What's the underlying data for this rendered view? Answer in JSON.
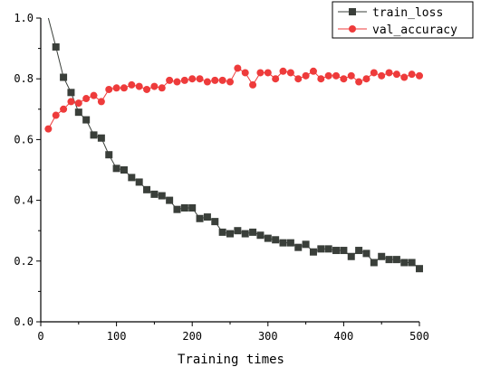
{
  "chart_data": {
    "type": "line",
    "title": "",
    "xlabel": "Training times",
    "ylabel": "",
    "xlim": [
      0,
      500
    ],
    "ylim": [
      0.0,
      1.0
    ],
    "x_ticks": [
      0,
      100,
      200,
      300,
      400,
      500
    ],
    "y_ticks": [
      0.0,
      0.2,
      0.4,
      0.6,
      0.8,
      1.0
    ],
    "x_tick_labels": [
      "0",
      "100",
      "200",
      "300",
      "400",
      "500"
    ],
    "y_tick_labels": [
      "0.0",
      "0.2",
      "0.4",
      "0.6",
      "0.8",
      "1.0"
    ],
    "grid": false,
    "legend_position": "top-right",
    "x": [
      10,
      20,
      30,
      40,
      50,
      60,
      70,
      80,
      90,
      100,
      110,
      120,
      130,
      140,
      150,
      160,
      170,
      180,
      190,
      200,
      210,
      220,
      230,
      240,
      250,
      260,
      270,
      280,
      290,
      300,
      310,
      320,
      330,
      340,
      350,
      360,
      370,
      380,
      390,
      400,
      410,
      420,
      430,
      440,
      450,
      460,
      470,
      480,
      490,
      500
    ],
    "series": [
      {
        "name": "train_loss",
        "color": "#3a3f3a",
        "marker": "square",
        "line_start": [
          10,
          1.0
        ],
        "values": [
          null,
          0.905,
          0.805,
          0.755,
          0.69,
          0.665,
          0.615,
          0.605,
          0.55,
          0.505,
          0.5,
          0.475,
          0.46,
          0.435,
          0.42,
          0.415,
          0.4,
          0.37,
          0.375,
          0.375,
          0.34,
          0.345,
          0.33,
          0.295,
          0.29,
          0.3,
          0.29,
          0.295,
          0.285,
          0.275,
          0.27,
          0.26,
          0.26,
          0.245,
          0.255,
          0.23,
          0.24,
          0.24,
          0.235,
          0.235,
          0.215,
          0.235,
          0.225,
          0.195,
          0.215,
          0.205,
          0.205,
          0.195,
          0.195,
          0.175
        ]
      },
      {
        "name": "val_accuracy",
        "color": "#ee3b3b",
        "marker": "circle",
        "values": [
          0.635,
          0.68,
          0.7,
          0.725,
          0.72,
          0.735,
          0.745,
          0.725,
          0.765,
          0.77,
          0.77,
          0.78,
          0.775,
          0.765,
          0.775,
          0.77,
          0.795,
          0.79,
          0.795,
          0.8,
          0.8,
          0.79,
          0.795,
          0.795,
          0.79,
          0.835,
          0.82,
          0.78,
          0.82,
          0.82,
          0.8,
          0.825,
          0.82,
          0.8,
          0.81,
          0.825,
          0.8,
          0.81,
          0.81,
          0.8,
          0.81,
          0.79,
          0.8,
          0.82,
          0.81,
          0.82,
          0.815,
          0.805,
          0.815,
          0.81
        ]
      }
    ]
  }
}
